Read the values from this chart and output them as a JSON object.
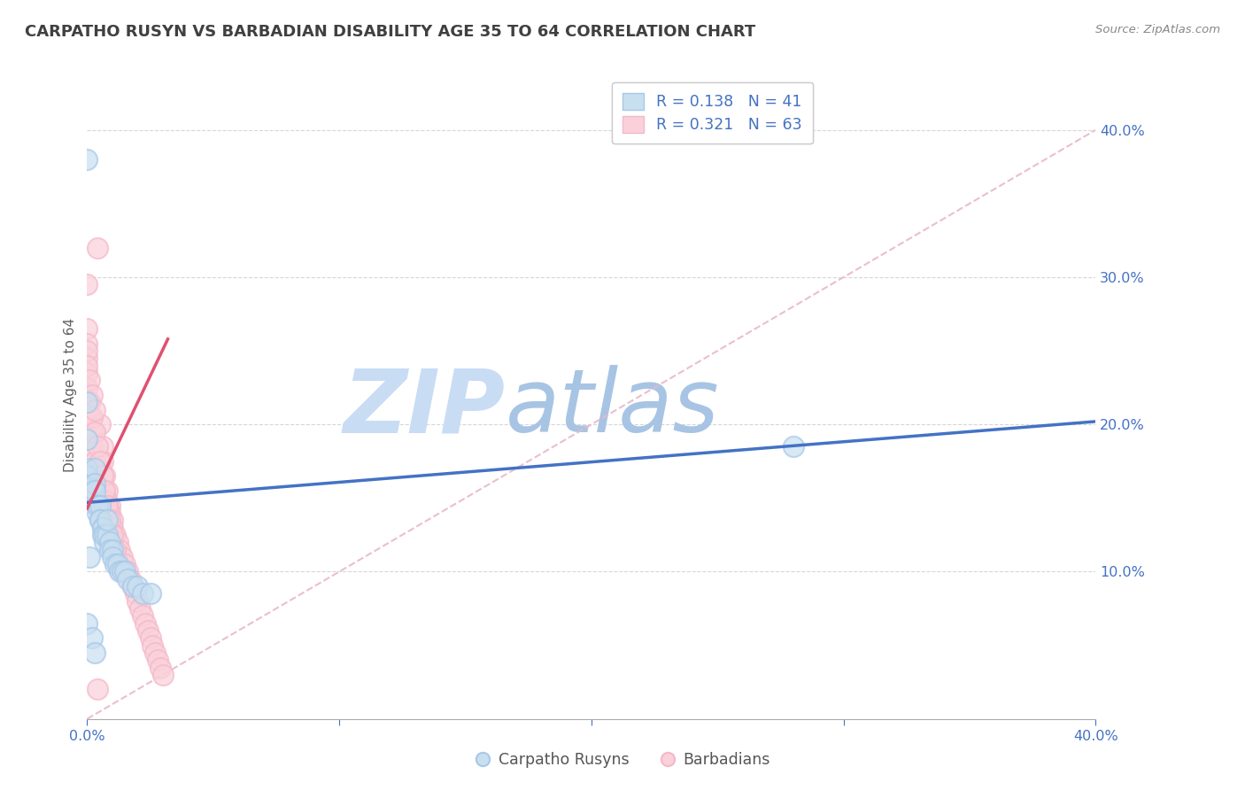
{
  "title": "CARPATHO RUSYN VS BARBADIAN DISABILITY AGE 35 TO 64 CORRELATION CHART",
  "source": "Source: ZipAtlas.com",
  "ylabel": "Disability Age 35 to 64",
  "legend_r1": "R = 0.138",
  "legend_n1": "N = 41",
  "legend_r2": "R = 0.321",
  "legend_n2": "N = 63",
  "legend_label1": "Carpatho Rusyns",
  "legend_label2": "Barbadians",
  "xlim": [
    0.0,
    0.4
  ],
  "ylim": [
    0.0,
    0.44
  ],
  "yticks": [
    0.1,
    0.2,
    0.3,
    0.4
  ],
  "blue_color": "#a8c8e8",
  "pink_color": "#f4b8c8",
  "blue_fill_color": "#c8dff0",
  "pink_fill_color": "#fad0da",
  "blue_line_color": "#4472c4",
  "pink_line_color": "#e05070",
  "diag_line_color": "#e8b8c8",
  "tick_label_color": "#4472c4",
  "watermark_zip_color": "#c8d8f0",
  "watermark_atlas_color": "#b0c8e0",
  "title_color": "#404040",
  "blue_scatter_x": [
    0.0,
    0.0,
    0.0,
    0.0,
    0.0,
    0.002,
    0.003,
    0.003,
    0.003,
    0.004,
    0.004,
    0.004,
    0.005,
    0.005,
    0.005,
    0.006,
    0.006,
    0.006,
    0.007,
    0.007,
    0.008,
    0.008,
    0.009,
    0.009,
    0.01,
    0.01,
    0.011,
    0.012,
    0.013,
    0.014,
    0.015,
    0.016,
    0.018,
    0.02,
    0.022,
    0.025,
    0.0,
    0.002,
    0.28,
    0.003,
    0.001
  ],
  "blue_scatter_y": [
    0.215,
    0.38,
    0.19,
    0.17,
    0.165,
    0.155,
    0.17,
    0.16,
    0.155,
    0.145,
    0.14,
    0.145,
    0.145,
    0.135,
    0.135,
    0.13,
    0.13,
    0.125,
    0.12,
    0.125,
    0.125,
    0.135,
    0.12,
    0.115,
    0.115,
    0.11,
    0.105,
    0.105,
    0.1,
    0.1,
    0.1,
    0.095,
    0.09,
    0.09,
    0.085,
    0.085,
    0.065,
    0.055,
    0.185,
    0.045,
    0.11
  ],
  "pink_scatter_x": [
    0.0,
    0.0,
    0.0,
    0.0,
    0.0,
    0.0,
    0.001,
    0.001,
    0.002,
    0.002,
    0.003,
    0.003,
    0.004,
    0.004,
    0.005,
    0.005,
    0.006,
    0.006,
    0.007,
    0.007,
    0.008,
    0.008,
    0.009,
    0.009,
    0.01,
    0.01,
    0.011,
    0.012,
    0.013,
    0.014,
    0.015,
    0.016,
    0.017,
    0.018,
    0.019,
    0.02,
    0.021,
    0.022,
    0.023,
    0.024,
    0.025,
    0.026,
    0.027,
    0.028,
    0.029,
    0.03,
    0.0,
    0.001,
    0.002,
    0.003,
    0.004,
    0.005,
    0.006,
    0.007,
    0.008,
    0.009,
    0.01,
    0.011,
    0.0,
    0.001,
    0.002,
    0.003,
    0.004
  ],
  "pink_scatter_y": [
    0.295,
    0.265,
    0.255,
    0.245,
    0.235,
    0.225,
    0.215,
    0.205,
    0.195,
    0.185,
    0.175,
    0.165,
    0.32,
    0.155,
    0.2,
    0.145,
    0.185,
    0.175,
    0.165,
    0.155,
    0.155,
    0.148,
    0.145,
    0.14,
    0.135,
    0.13,
    0.125,
    0.12,
    0.115,
    0.11,
    0.105,
    0.1,
    0.095,
    0.09,
    0.085,
    0.08,
    0.075,
    0.07,
    0.065,
    0.06,
    0.055,
    0.05,
    0.045,
    0.04,
    0.035,
    0.03,
    0.25,
    0.215,
    0.205,
    0.195,
    0.185,
    0.175,
    0.165,
    0.155,
    0.145,
    0.135,
    0.125,
    0.115,
    0.24,
    0.23,
    0.22,
    0.21,
    0.02
  ],
  "blue_trend_x": [
    0.0,
    0.4
  ],
  "blue_trend_y": [
    0.147,
    0.202
  ],
  "pink_trend_x": [
    0.0,
    0.032
  ],
  "pink_trend_y": [
    0.143,
    0.258
  ]
}
